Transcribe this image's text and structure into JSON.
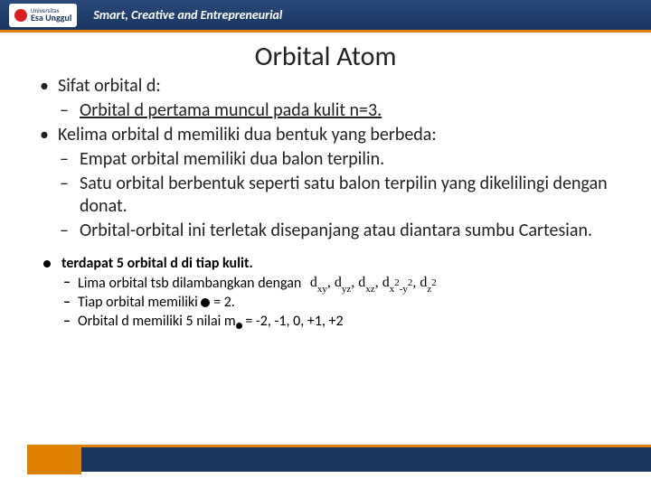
{
  "header": {
    "logo_top": "Universitas",
    "logo_name": "Esa Unggul",
    "tagline": "Smart, Creative and Entrepreneurial"
  },
  "title": "Orbital Atom",
  "b1": "Sifat orbital d:",
  "b1s1": "Orbital d pertama muncul pada kulit n=3.",
  "b2": "Kelima orbital d memiliki dua bentuk yang berbeda:",
  "b2s1": "Empat orbital memiliki dua balon terpilin.",
  "b2s2": "Satu orbital berbentuk seperti satu balon terpilin yang dikelilingi dengan donat.",
  "b2s3": "Orbital-orbital ini terletak disepanjang  atau diantara sumbu Cartesian.",
  "sb1": "terdapat 5 orbital d di tiap kulit.",
  "sb1s1": "Lima orbital tsb dilambangkan dengan",
  "sb1s2a": "Tiap orbital memiliki ",
  "sb1s2b": " = 2.",
  "sb1s3a": "Orbital d memiliki 5 nilai m",
  "sb1s3b": " = -2, -1, 0, +1, +2"
}
